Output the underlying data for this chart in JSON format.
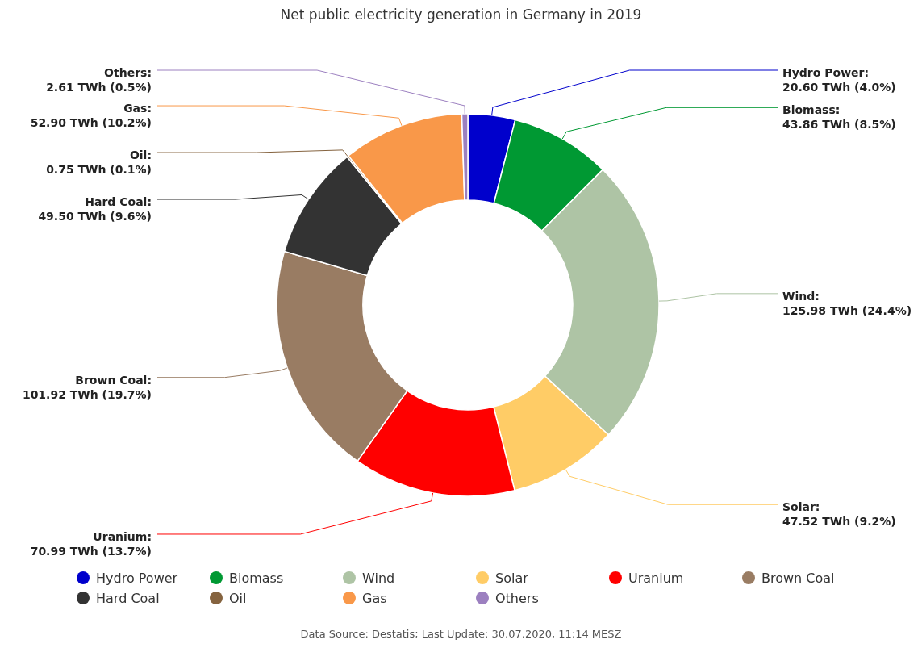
{
  "chart_data": {
    "type": "donut",
    "title": "Net public electricity generation in Germany in 2019",
    "categories": [
      "Hydro Power",
      "Biomass",
      "Wind",
      "Solar",
      "Uranium",
      "Brown Coal",
      "Hard Coal",
      "Oil",
      "Gas",
      "Others"
    ],
    "values": [
      20.6,
      43.86,
      125.98,
      47.52,
      70.99,
      101.92,
      49.5,
      0.75,
      52.9,
      2.61
    ],
    "colors": [
      "#0000cc",
      "#009933",
      "#aec4a5",
      "#ffcc66",
      "#ff0000",
      "#997c63",
      "#333333",
      "#85633f",
      "#f99849",
      "#9c80c0"
    ],
    "value_labels": [
      "Hydro Power:\n20.60 TWh (4.0%)",
      "Biomass:\n43.86 TWh (8.5%)",
      "Wind:\n125.98 TWh (24.4%)",
      "Solar:\n47.52 TWh (9.2%)",
      "Uranium:\n70.99 TWh (13.7%)",
      "Brown Coal:\n101.92 TWh (19.7%)",
      "Hard Coal:\n49.50 TWh (9.6%)",
      "Oil:\n0.75 TWh (0.1%)",
      "Gas:\n52.90 TWh (10.2%)",
      "Others:\n2.61 TWh (0.5%)"
    ],
    "legend": "bottom",
    "annotations": [
      "Data Source: Destatis; Last Update: 30.07.2020, 11:14 MESZ"
    ]
  }
}
